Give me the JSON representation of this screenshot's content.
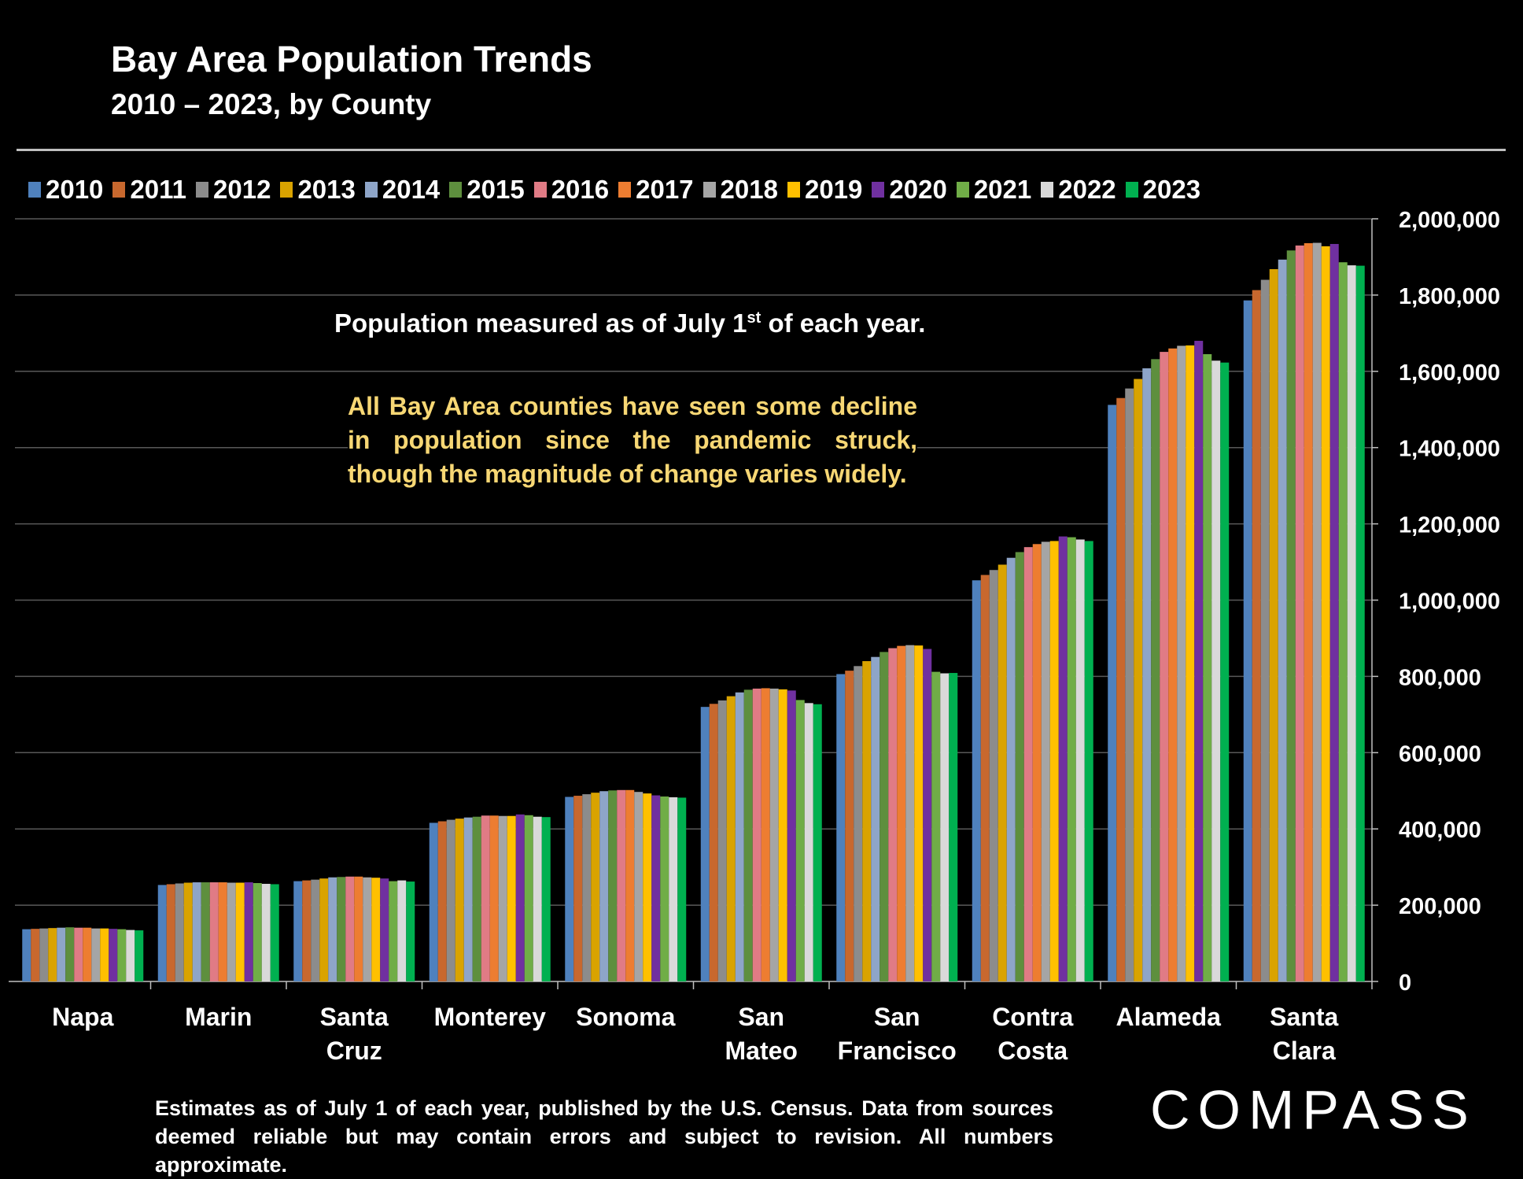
{
  "chart_data": {
    "type": "bar",
    "title": "Bay Area Population Trends",
    "subtitle": "2010 – 2023, by County",
    "xlabel": "",
    "ylabel": "",
    "ylim": [
      0,
      2000000
    ],
    "yticks": [
      "0",
      "200,000",
      "400,000",
      "600,000",
      "800,000",
      "1,000,000",
      "1,200,000",
      "1,400,000",
      "1,600,000",
      "1,800,000",
      "2,000,000"
    ],
    "grid": true,
    "legend_position": "top",
    "y_axis_side": "right",
    "categories": [
      "Napa",
      "Marin",
      "Santa Cruz",
      "Monterey",
      "Sonoma",
      "San Mateo",
      "San Francisco",
      "Contra Costa",
      "Alameda",
      "Santa Clara"
    ],
    "category_labels": [
      [
        "Napa"
      ],
      [
        "Marin"
      ],
      [
        "Santa",
        "Cruz"
      ],
      [
        "Monterey"
      ],
      [
        "Sonoma"
      ],
      [
        "San",
        "Mateo"
      ],
      [
        "San",
        "Francisco"
      ],
      [
        "Contra",
        "Costa"
      ],
      [
        "Alameda"
      ],
      [
        "Santa",
        "Clara"
      ]
    ],
    "series": [
      {
        "name": "2010",
        "color": "#4f81bd",
        "values": [
          137000,
          253000,
          263000,
          416000,
          484000,
          720000,
          806000,
          1052000,
          1512000,
          1786000
        ]
      },
      {
        "name": "2011",
        "color": "#c8682e",
        "values": [
          138000,
          255000,
          265000,
          420000,
          487000,
          728000,
          815000,
          1066000,
          1530000,
          1813000
        ]
      },
      {
        "name": "2012",
        "color": "#8c8c8c",
        "values": [
          139000,
          257000,
          267000,
          424000,
          491000,
          737000,
          827000,
          1079000,
          1555000,
          1840000
        ]
      },
      {
        "name": "2013",
        "color": "#d9a300",
        "values": [
          140000,
          259000,
          270000,
          427000,
          495000,
          748000,
          840000,
          1093000,
          1580000,
          1868000
        ]
      },
      {
        "name": "2014",
        "color": "#8ea5c8",
        "values": [
          141000,
          260000,
          273000,
          430000,
          499000,
          758000,
          851000,
          1111000,
          1608000,
          1893000
        ]
      },
      {
        "name": "2015",
        "color": "#5e8f3e",
        "values": [
          142000,
          260000,
          274000,
          432000,
          501000,
          765000,
          864000,
          1126000,
          1632000,
          1917000
        ]
      },
      {
        "name": "2016",
        "color": "#e07b85",
        "values": [
          141000,
          260000,
          275000,
          435000,
          502000,
          768000,
          874000,
          1139000,
          1651000,
          1930000
        ]
      },
      {
        "name": "2017",
        "color": "#ed7d31",
        "values": [
          141000,
          260000,
          275000,
          435000,
          502000,
          769000,
          880000,
          1147000,
          1660000,
          1936000
        ]
      },
      {
        "name": "2018",
        "color": "#a5a5a5",
        "values": [
          139000,
          259000,
          273000,
          434000,
          497000,
          768000,
          882000,
          1153000,
          1667000,
          1937000
        ]
      },
      {
        "name": "2019",
        "color": "#ffc000",
        "values": [
          139000,
          259000,
          272000,
          434000,
          493000,
          766000,
          881000,
          1155000,
          1668000,
          1928000
        ]
      },
      {
        "name": "2020",
        "color": "#7030a0",
        "values": [
          138000,
          260000,
          270000,
          438000,
          488000,
          763000,
          872000,
          1167000,
          1680000,
          1934000
        ]
      },
      {
        "name": "2021",
        "color": "#70ad47",
        "values": [
          137000,
          258000,
          263000,
          436000,
          485000,
          738000,
          812000,
          1165000,
          1645000,
          1886000
        ]
      },
      {
        "name": "2022",
        "color": "#d9d9d9",
        "values": [
          135000,
          256000,
          265000,
          432000,
          483000,
          730000,
          808000,
          1159000,
          1628000,
          1878000
        ]
      },
      {
        "name": "2023",
        "color": "#00b050",
        "values": [
          134000,
          255000,
          262000,
          431000,
          482000,
          727000,
          809000,
          1155000,
          1623000,
          1877000
        ]
      }
    ]
  },
  "annotations": {
    "note_main": "Population measured as of July 1",
    "note_sup": "st",
    "note_end": " of each year.",
    "highlight": "All Bay Area counties have seen some decline in population since the pandemic struck, though the magnitude of change varies widely.",
    "highlight_color": "#f7d774"
  },
  "footer": "Estimates as of July 1 of each year, published by the U.S. Census. Data from sources deemed reliable but may contain errors and subject to revision. All numbers approximate.",
  "logo": "COMPASS"
}
